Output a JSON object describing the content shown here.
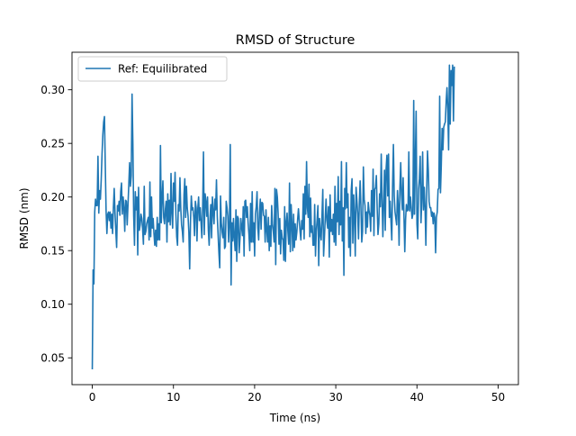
{
  "chart_data": {
    "type": "line",
    "title": "RMSD of Structure",
    "xlabel": "Time (ns)",
    "ylabel": "RMSD (nm)",
    "xlim": [
      -2.5,
      52.5
    ],
    "ylim": [
      0.025,
      0.335
    ],
    "x_ticks": [
      0,
      10,
      20,
      30,
      40,
      50
    ],
    "x_tick_labels": [
      "0",
      "10",
      "20",
      "30",
      "40",
      "50"
    ],
    "y_ticks": [
      0.05,
      0.1,
      0.15,
      0.2,
      0.25,
      0.3
    ],
    "y_tick_labels": [
      "0.05",
      "0.10",
      "0.15",
      "0.20",
      "0.25",
      "0.30"
    ],
    "grid": false,
    "legend": {
      "placement": "upper-left"
    },
    "colors": {
      "series": "#1f77b4",
      "axes": "#000000",
      "legend_border": "#cccccc"
    },
    "series": [
      {
        "name": "Ref: Equilibrated",
        "x_start": 0,
        "x_step": 0.1,
        "values": [
          0.04,
          0.132,
          0.119,
          0.186,
          0.198,
          0.192,
          0.192,
          0.238,
          0.185,
          0.206,
          0.198,
          0.216,
          0.24,
          0.258,
          0.27,
          0.275,
          0.23,
          0.187,
          0.166,
          0.184,
          0.186,
          0.178,
          0.186,
          0.171,
          0.184,
          0.166,
          0.19,
          0.208,
          0.185,
          0.168,
          0.153,
          0.192,
          0.187,
          0.196,
          0.183,
          0.205,
          0.213,
          0.184,
          0.2,
          0.19,
          0.168,
          0.197,
          0.196,
          0.174,
          0.193,
          0.212,
          0.232,
          0.21,
          0.22,
          0.296,
          0.25,
          0.183,
          0.155,
          0.205,
          0.188,
          0.2,
          0.146,
          0.209,
          0.169,
          0.174,
          0.184,
          0.18,
          0.17,
          0.156,
          0.21,
          0.165,
          0.168,
          0.175,
          0.178,
          0.181,
          0.16,
          0.214,
          0.163,
          0.2,
          0.171,
          0.18,
          0.166,
          0.155,
          0.169,
          0.154,
          0.181,
          0.16,
          0.175,
          0.16,
          0.248,
          0.176,
          0.198,
          0.215,
          0.181,
          0.175,
          0.188,
          0.196,
          0.158,
          0.203,
          0.177,
          0.197,
          0.174,
          0.222,
          0.185,
          0.171,
          0.213,
          0.196,
          0.223,
          0.184,
          0.163,
          0.155,
          0.193,
          0.187,
          0.218,
          0.19,
          0.174,
          0.168,
          0.158,
          0.202,
          0.217,
          0.181,
          0.21,
          0.19,
          0.182,
          0.167,
          0.133,
          0.177,
          0.201,
          0.188,
          0.19,
          0.181,
          0.164,
          0.196,
          0.19,
          0.159,
          0.189,
          0.2,
          0.178,
          0.19,
          0.176,
          0.162,
          0.19,
          0.242,
          0.165,
          0.203,
          0.196,
          0.182,
          0.2,
          0.169,
          0.155,
          0.18,
          0.193,
          0.162,
          0.2,
          0.186,
          0.175,
          0.198,
          0.188,
          0.216,
          0.182,
          0.165,
          0.148,
          0.134,
          0.201,
          0.176,
          0.167,
          0.162,
          0.181,
          0.152,
          0.154,
          0.196,
          0.19,
          0.182,
          0.158,
          0.175,
          0.249,
          0.118,
          0.176,
          0.159,
          0.18,
          0.162,
          0.15,
          0.188,
          0.14,
          0.182,
          0.18,
          0.148,
          0.162,
          0.18,
          0.172,
          0.164,
          0.191,
          0.145,
          0.196,
          0.197,
          0.181,
          0.191,
          0.176,
          0.165,
          0.15,
          0.194,
          0.158,
          0.205,
          0.158,
          0.176,
          0.145,
          0.184,
          0.191,
          0.205,
          0.171,
          0.16,
          0.185,
          0.198,
          0.17,
          0.195,
          0.194,
          0.183,
          0.182,
          0.158,
          0.188,
          0.169,
          0.158,
          0.181,
          0.15,
          0.173,
          0.154,
          0.192,
          0.175,
          0.168,
          0.158,
          0.208,
          0.137,
          0.207,
          0.2,
          0.184,
          0.156,
          0.18,
          0.147,
          0.169,
          0.162,
          0.16,
          0.141,
          0.191,
          0.14,
          0.177,
          0.185,
          0.168,
          0.156,
          0.213,
          0.149,
          0.193,
          0.175,
          0.15,
          0.184,
          0.153,
          0.175,
          0.16,
          0.167,
          0.179,
          0.189,
          0.178,
          0.168,
          0.16,
          0.178,
          0.17,
          0.203,
          0.161,
          0.21,
          0.184,
          0.233,
          0.19,
          0.181,
          0.212,
          0.163,
          0.199,
          0.167,
          0.173,
          0.155,
          0.155,
          0.193,
          0.145,
          0.168,
          0.179,
          0.192,
          0.136,
          0.18,
          0.166,
          0.16,
          0.182,
          0.207,
          0.145,
          0.162,
          0.18,
          0.198,
          0.178,
          0.171,
          0.191,
          0.144,
          0.202,
          0.168,
          0.179,
          0.165,
          0.184,
          0.158,
          0.21,
          0.155,
          0.194,
          0.177,
          0.219,
          0.165,
          0.196,
          0.174,
          0.233,
          0.159,
          0.19,
          0.127,
          0.208,
          0.189,
          0.232,
          0.19,
          0.203,
          0.153,
          0.181,
          0.145,
          0.206,
          0.217,
          0.157,
          0.202,
          0.183,
          0.145,
          0.209,
          0.197,
          0.184,
          0.161,
          0.194,
          0.215,
          0.19,
          0.158,
          0.168,
          0.228,
          0.198,
          0.192,
          0.166,
          0.186,
          0.172,
          0.195,
          0.187,
          0.183,
          0.168,
          0.206,
          0.182,
          0.226,
          0.164,
          0.207,
          0.209,
          0.22,
          0.189,
          0.165,
          0.175,
          0.203,
          0.191,
          0.24,
          0.2,
          0.163,
          0.193,
          0.225,
          0.169,
          0.226,
          0.239,
          0.201,
          0.24,
          0.181,
          0.196,
          0.178,
          0.16,
          0.211,
          0.249,
          0.201,
          0.186,
          0.18,
          0.174,
          0.206,
          0.192,
          0.155,
          0.208,
          0.232,
          0.202,
          0.188,
          0.218,
          0.183,
          0.149,
          0.179,
          0.193,
          0.187,
          0.188,
          0.242,
          0.187,
          0.2,
          0.19,
          0.18,
          0.184,
          0.29,
          0.184,
          0.233,
          0.28,
          0.175,
          0.161,
          0.207,
          0.217,
          0.238,
          0.176,
          0.198,
          0.242,
          0.188,
          0.209,
          0.19,
          0.155,
          0.204,
          0.243,
          0.225,
          0.196,
          0.19,
          0.19,
          0.182,
          0.186,
          0.175,
          0.185,
          0.181,
          0.148,
          0.181,
          0.186,
          0.207,
          0.208,
          0.294,
          0.204,
          0.23,
          0.264,
          0.244,
          0.265,
          0.268,
          0.27,
          0.289,
          0.302,
          0.282,
          0.244,
          0.323,
          0.268,
          0.318,
          0.304,
          0.323,
          0.271,
          0.321
        ]
      }
    ]
  }
}
